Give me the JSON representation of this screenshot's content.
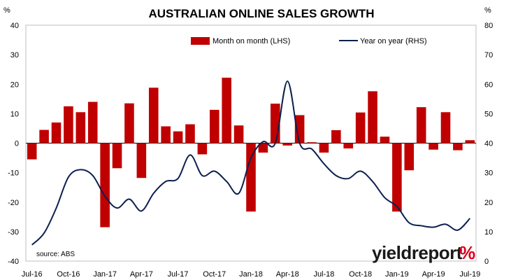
{
  "chart_data": {
    "type": "bar+line",
    "title": "AUSTRALIAN ONLINE SALES GROWTH",
    "left_axis_unit": "%",
    "right_axis_unit": "%",
    "left_ylim": [
      -40,
      40
    ],
    "left_ticks": [
      "40",
      "30",
      "20",
      "10",
      "0",
      "-10",
      "-20",
      "-30",
      "-40"
    ],
    "right_ylim": [
      0,
      80
    ],
    "right_ticks": [
      "80",
      "70",
      "60",
      "50",
      "40",
      "30",
      "20",
      "10",
      "0"
    ],
    "x_tick_labels": [
      "Jul-16",
      "Oct-16",
      "Jan-17",
      "Apr-17",
      "Jul-17",
      "Oct-17",
      "Jan-18",
      "Apr-18",
      "Jul-18",
      "Oct-18",
      "Jan-19",
      "Apr-19",
      "Jul-19"
    ],
    "categories": [
      "Jul-16",
      "Aug-16",
      "Sep-16",
      "Oct-16",
      "Nov-16",
      "Dec-16",
      "Jan-17",
      "Feb-17",
      "Mar-17",
      "Apr-17",
      "May-17",
      "Jun-17",
      "Jul-17",
      "Aug-17",
      "Sep-17",
      "Oct-17",
      "Nov-17",
      "Dec-17",
      "Jan-18",
      "Feb-18",
      "Mar-18",
      "Apr-18",
      "May-18",
      "Jun-18",
      "Jul-18",
      "Aug-18",
      "Sep-18",
      "Oct-18",
      "Nov-18",
      "Dec-18",
      "Jan-19",
      "Feb-19",
      "Mar-19",
      "Apr-19",
      "May-19",
      "Jun-19",
      "Jul-19"
    ],
    "series": [
      {
        "name": "Month on month (LHS)",
        "type": "bar",
        "axis": "left",
        "color": "#c00000",
        "values": [
          -5.5,
          4.5,
          7,
          12.5,
          10.5,
          14,
          -28.5,
          -8.5,
          13.5,
          -11.8,
          18.8,
          5.7,
          4,
          6.4,
          -3.8,
          11.3,
          22.2,
          6,
          -23.2,
          -3.2,
          13.4,
          -0.8,
          9.5,
          0.3,
          -3.2,
          4.4,
          -1.8,
          10.4,
          17.6,
          2.2,
          -23.2,
          -9.2,
          12.2,
          -2.2,
          10.5,
          -2.4,
          1
        ]
      },
      {
        "name": "Year on year (RHS)",
        "type": "line",
        "axis": "right",
        "color": "#0d1f4e",
        "values": [
          5.5,
          9.5,
          18,
          28.5,
          31,
          29,
          22,
          18,
          21,
          17,
          23,
          27,
          28,
          36,
          29,
          30.5,
          27,
          23,
          35,
          40.5,
          40,
          61,
          40,
          38,
          33,
          29,
          28,
          30.5,
          27,
          21.5,
          18.5,
          13,
          12,
          11.5,
          12.5,
          10.5,
          14.5
        ]
      }
    ],
    "legend_position": "top-right",
    "grid": false
  },
  "annotations": {
    "source": "source: ABS",
    "brand_text": "yieldreport",
    "brand_pct": "%"
  }
}
